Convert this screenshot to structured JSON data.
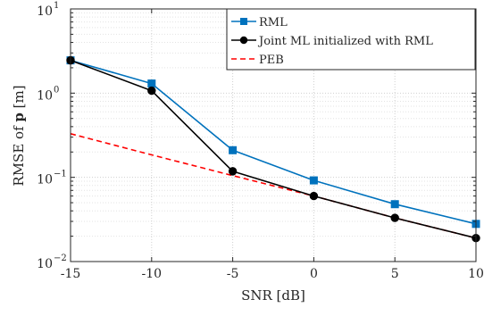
{
  "chart_data": {
    "type": "line",
    "xlabel": "SNR [dB]",
    "ylabel_prefix": "RMSE of ",
    "ylabel_bold": "p",
    "ylabel_suffix": " [m]",
    "x": [
      -15,
      -10,
      -5,
      0,
      5,
      10
    ],
    "xticks": [
      -15,
      -10,
      -5,
      0,
      5,
      10
    ],
    "xtick_labels": [
      "-15",
      "-10",
      "-5",
      "0",
      "5",
      "10"
    ],
    "xlim": [
      -15,
      10
    ],
    "ylim": [
      0.01,
      10
    ],
    "yscale": "log",
    "yticks": [
      {
        "value": 0.01,
        "base": "10",
        "exp": "−2"
      },
      {
        "value": 0.1,
        "base": "10",
        "exp": "−1"
      },
      {
        "value": 1,
        "base": "10",
        "exp": "0"
      },
      {
        "value": 10,
        "base": "10",
        "exp": "1"
      }
    ],
    "grid": true,
    "legend_position": "top-right",
    "series": [
      {
        "name": "RML",
        "values": [
          2.45,
          1.3,
          0.21,
          0.092,
          0.048,
          0.028
        ],
        "color": "#0072BD",
        "marker": "square",
        "dash": "solid"
      },
      {
        "name": "Joint ML initialized with RML",
        "values": [
          2.45,
          1.07,
          0.118,
          0.06,
          0.033,
          0.019
        ],
        "color": "#000000",
        "marker": "circle",
        "dash": "solid"
      },
      {
        "name": "PEB",
        "values": [
          0.33,
          0.185,
          0.105,
          0.06,
          0.033,
          0.019
        ],
        "color": "#FF0000",
        "marker": "none",
        "dash": "dashed"
      }
    ]
  }
}
